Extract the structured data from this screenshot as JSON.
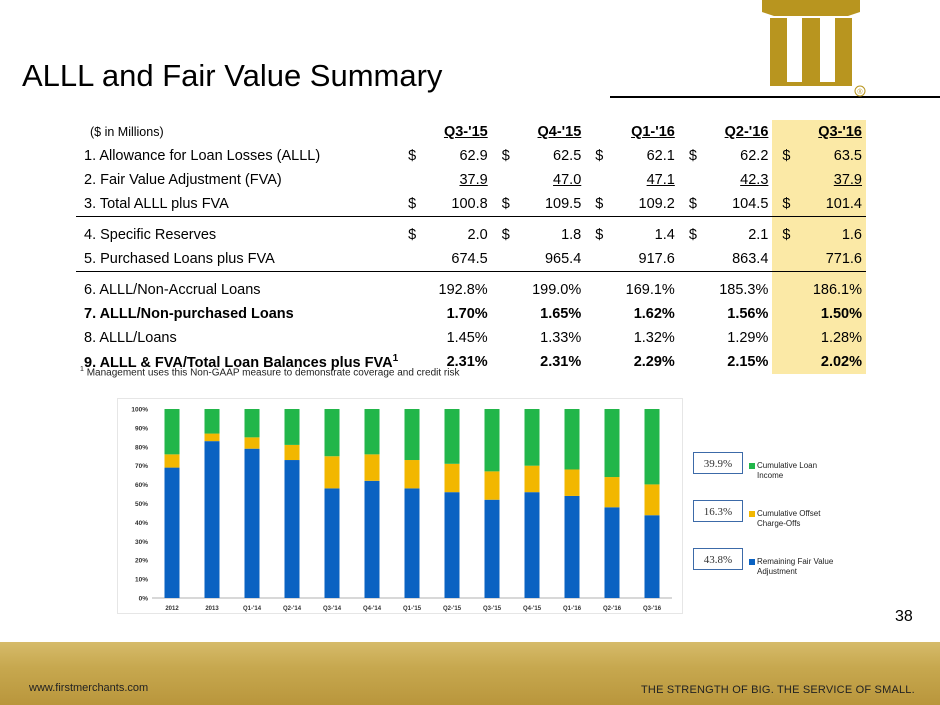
{
  "title": "ALLL and Fair Value Summary",
  "logo": {
    "registered_mark": "®"
  },
  "table": {
    "units_label": "($ in Millions)",
    "columns": [
      "Q3-'15",
      "Q4-'15",
      "Q1-'16",
      "Q2-'16",
      "Q3-'16"
    ],
    "rows": [
      {
        "label": "1. Allowance for Loan Losses (ALLL)",
        "values": [
          "62.9",
          "62.5",
          "62.1",
          "62.2",
          "63.5"
        ]
      },
      {
        "label": "2. Fair Value Adjustment (FVA)",
        "values": [
          "37.9",
          "47.0",
          "47.1",
          "42.3",
          "37.9"
        ]
      },
      {
        "label": "3. Total ALLL plus FVA",
        "values": [
          "100.8",
          "109.5",
          "109.2",
          "104.5",
          "101.4"
        ]
      },
      {
        "label": "4. Specific Reserves",
        "values": [
          "2.0",
          "1.8",
          "1.4",
          "2.1",
          "1.6"
        ]
      },
      {
        "label": "5. Purchased Loans plus FVA",
        "values": [
          "674.5",
          "965.4",
          "917.6",
          "863.4",
          "771.6"
        ]
      },
      {
        "label": "6. ALLL/Non-Accrual Loans",
        "values": [
          "192.8%",
          "199.0%",
          "169.1%",
          "185.3%",
          "186.1%"
        ]
      },
      {
        "label": "7. ALLL/Non-purchased Loans",
        "values": [
          "1.70%",
          "1.65%",
          "1.62%",
          "1.56%",
          "1.50%"
        ]
      },
      {
        "label": "8. ALLL/Loans",
        "values": [
          "1.45%",
          "1.33%",
          "1.32%",
          "1.29%",
          "1.28%"
        ]
      },
      {
        "label": "9. ALLL & FVA/Total Loan Balances plus FVA",
        "sup": "1",
        "values": [
          "2.31%",
          "2.31%",
          "2.29%",
          "2.15%",
          "2.02%"
        ]
      }
    ]
  },
  "footnote": {
    "marker": "1",
    "text": "Management uses this Non-GAAP measure to  demonstrate coverage and credit risk"
  },
  "chart_data": {
    "type": "bar",
    "stacked": true,
    "categories": [
      "2012",
      "2013",
      "Q1-'14",
      "Q2-'14",
      "Q3-'14",
      "Q4-'14",
      "Q1-'15",
      "Q2-'15",
      "Q3-'15",
      "Q4-'15",
      "Q1-'16",
      "Q2-'16",
      "Q3-'16"
    ],
    "series": [
      {
        "name": "Remaining Fair Value Adjustment",
        "color": "#0a62c2",
        "values": [
          69,
          83,
          79,
          73,
          58,
          62,
          58,
          56,
          52,
          56,
          54,
          48,
          43.8
        ]
      },
      {
        "name": "Cumulative Offset Charge-Offs",
        "color": "#f2b700",
        "values": [
          7,
          4,
          6,
          8,
          17,
          14,
          15,
          15,
          15,
          14,
          14,
          16,
          16.3
        ]
      },
      {
        "name": "Cumulative Loan Income",
        "color": "#22b64a",
        "values": [
          24,
          13,
          15,
          19,
          25,
          24,
          27,
          29,
          33,
          30,
          32,
          36,
          39.9
        ]
      }
    ],
    "yticks": [
      "0%",
      "10%",
      "20%",
      "30%",
      "40%",
      "50%",
      "60%",
      "70%",
      "80%",
      "90%",
      "100%"
    ],
    "ylim": [
      0,
      100
    ],
    "legend": [
      {
        "value_label": "39.9%",
        "text": "Cumulative Loan Income",
        "color": "#22b64a"
      },
      {
        "value_label": "16.3%",
        "text": "Cumulative Offset Charge-Offs",
        "color": "#f2b700"
      },
      {
        "value_label": "43.8%",
        "text": "Remaining Fair Value Adjustment",
        "color": "#0a62c2"
      }
    ]
  },
  "page_number": "38",
  "footer": {
    "url": "www.firstmerchants.com",
    "tagline": "THE STRENGTH OF BIG. THE SERVICE OF SMALL."
  }
}
